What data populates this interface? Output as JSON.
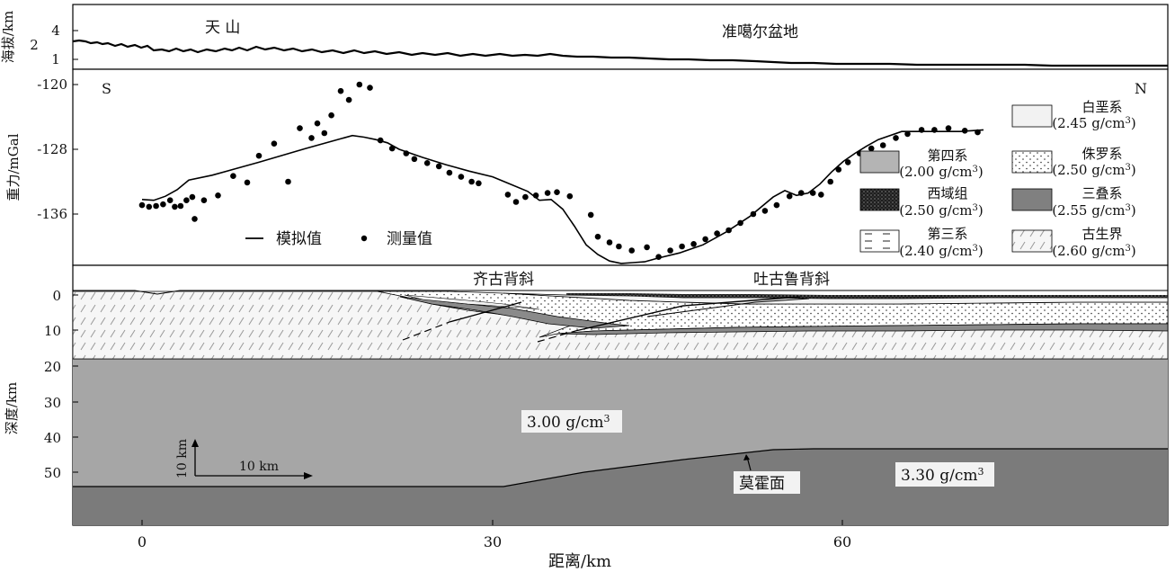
{
  "elevation_panel": {
    "ylabel": "海拔/km",
    "yticks": [
      "4",
      "2",
      "1"
    ],
    "label_tianshan": "天  山",
    "label_basin": "准噶尔盆地"
  },
  "gravity_panel": {
    "ylabel": "重力/mGal",
    "label_S": "S",
    "label_N": "N",
    "legend_simulated": "模拟值",
    "legend_measured": "测量值"
  },
  "section_panel": {
    "ylabel": "深度/km",
    "label_qigu": "齐古背斜",
    "label_tugulu": "吐古鲁背斜",
    "density_upper": "3.00 g/cm",
    "density_lower": "3.30 g/cm",
    "density_sup": "3",
    "moho_label": "莫霍面",
    "scale_v": "10 km",
    "scale_h": "10 km"
  },
  "strata_legend": [
    {
      "name": "白垩系",
      "density": "(2.45 g/cm",
      "color": "#f2f2f2",
      "pattern": "plain"
    },
    {
      "name": "第四系",
      "density": "(2.00 g/cm",
      "color": "#b4b4b4",
      "pattern": "plain"
    },
    {
      "name": "侏罗系",
      "density": "(2.50 g/cm",
      "color": "#ffffff",
      "pattern": "dots"
    },
    {
      "name": "西域组",
      "density": "(2.50 g/cm",
      "color": "#222222",
      "pattern": "speckle"
    },
    {
      "name": "三叠系",
      "density": "(2.55 g/cm",
      "color": "#808080",
      "pattern": "plain"
    },
    {
      "name": "第三系",
      "density": "(2.40 g/cm",
      "color": "#ffffff",
      "pattern": "dashes"
    },
    {
      "name": "古生界",
      "density": "(2.60 g/cm",
      "color": "#f6f6f6",
      "pattern": "hatch"
    }
  ],
  "chart_data": {
    "type": "scatter",
    "xlabel": "距离/km",
    "x_ticks": [
      "0",
      "30",
      "60"
    ],
    "xlim": [
      -6,
      87
    ],
    "gravity": {
      "ylabel": "重力/mGal",
      "yticks": [
        "-120",
        "-128",
        "-136"
      ],
      "ylim": [
        -120,
        -145
      ],
      "series": [
        {
          "name": "模拟值",
          "kind": "line",
          "x": [
            0,
            1,
            2,
            3,
            4,
            6,
            10,
            14,
            18,
            19,
            20,
            21,
            22,
            24,
            26,
            28,
            30,
            31,
            33,
            34,
            35,
            36,
            37,
            38,
            39,
            40,
            41,
            42,
            43,
            44,
            46,
            48,
            50,
            52,
            54,
            55,
            56,
            57,
            58,
            59,
            60,
            61,
            62,
            63,
            65,
            67,
            70,
            72
          ],
          "y": [
            -134.2,
            -134.3,
            -133.8,
            -133.0,
            -131.8,
            -131.2,
            -129.6,
            -127.9,
            -126.3,
            -126.5,
            -126.8,
            -127.2,
            -128.0,
            -129.0,
            -129.9,
            -130.7,
            -131.4,
            -132.0,
            -133.2,
            -134.3,
            -134.2,
            -135.4,
            -137.5,
            -139.8,
            -141.0,
            -141.8,
            -142.1,
            -142.0,
            -141.9,
            -141.5,
            -140.8,
            -139.8,
            -138.2,
            -136.3,
            -133.9,
            -133.1,
            -133.7,
            -133.4,
            -132.3,
            -130.8,
            -129.5,
            -128.5,
            -127.6,
            -126.8,
            -125.8,
            -125.8,
            -125.8,
            -125.6
          ]
        },
        {
          "name": "测量值",
          "kind": "points",
          "x": [
            0,
            0.6,
            1.2,
            1.8,
            2.4,
            2.8,
            3.3,
            3.8,
            4.3,
            4.5,
            5.3,
            6.5,
            7.8,
            9,
            10,
            11.3,
            12.5,
            13.5,
            14.5,
            15,
            15.6,
            16.2,
            17,
            17.7,
            18.6,
            19.5,
            20.4,
            21.4,
            22.6,
            23.3,
            24.4,
            25.4,
            26.3,
            27.3,
            28.2,
            28.8,
            31.3,
            32,
            32.8,
            33.7,
            34.7,
            35.5,
            36.6,
            38.4,
            39,
            40,
            40.8,
            41.9,
            43.2,
            44.2,
            45.2,
            46.2,
            47.2,
            48.2,
            49.2,
            50.2,
            51.2,
            52.3,
            53.3,
            54.3,
            55.4,
            56.4,
            57.4,
            58.1,
            58.9,
            59.6,
            60.4,
            61.4,
            62.4,
            63.4,
            64.5,
            65.5,
            66.7,
            67.8,
            69,
            70.4,
            71.5
          ],
          "y": [
            -134.9,
            -135.1,
            -135.0,
            -134.8,
            -134.3,
            -135.1,
            -135.0,
            -134.3,
            -133.9,
            -136.6,
            -134.3,
            -133.7,
            -131.3,
            -132.1,
            -128.8,
            -127.3,
            -132.0,
            -125.4,
            -126.6,
            -124.8,
            -126.0,
            -123.8,
            -120.8,
            -121.9,
            -120.0,
            -120.4,
            -126.9,
            -127.9,
            -128.5,
            -129.2,
            -129.7,
            -130.1,
            -130.9,
            -131.4,
            -132.0,
            -132.2,
            -133.6,
            -134.5,
            -133.9,
            -133.7,
            -133.4,
            -133.3,
            -133.8,
            -136.1,
            -138.8,
            -139.5,
            -140.0,
            -140.5,
            -140.1,
            -141.3,
            -140.5,
            -140.0,
            -139.7,
            -139.1,
            -138.4,
            -138.0,
            -137.1,
            -136.0,
            -135.6,
            -134.9,
            -133.8,
            -133.4,
            -133.4,
            -133.6,
            -132.0,
            -130.5,
            -129.6,
            -128.5,
            -127.9,
            -127.5,
            -126.6,
            -126.1,
            -125.6,
            -125.6,
            -125.4,
            -125.7,
            -125.9
          ]
        }
      ]
    },
    "elevation": {
      "ylabel": "海拔/km",
      "yticks": [
        "4",
        "2",
        "1"
      ],
      "series": [
        {
          "name": "elevation",
          "kind": "line",
          "x": [
            -6,
            -4,
            -2,
            0,
            2,
            4,
            8,
            12,
            16,
            20,
            24,
            28,
            32,
            36,
            40,
            44,
            48,
            52,
            56,
            60,
            64,
            68,
            72,
            76,
            80,
            84,
            87
          ],
          "y": [
            2.4,
            2.3,
            2.0,
            2.1,
            1.8,
            1.8,
            1.7,
            1.8,
            1.6,
            1.7,
            1.5,
            1.6,
            1.5,
            1.5,
            1.4,
            1.3,
            1.2,
            1.1,
            1.0,
            0.9,
            0.9,
            0.85,
            0.8,
            0.8,
            0.75,
            0.7,
            0.7
          ]
        }
      ]
    },
    "section": {
      "ylabel": "深度/km",
      "yticks": [
        "0",
        "10",
        "20",
        "30",
        "40",
        "50"
      ],
      "moho_depth": {
        "x": [
          -6,
          30,
          62,
          87
        ],
        "y": [
          55,
          55,
          44,
          44
        ]
      }
    }
  }
}
